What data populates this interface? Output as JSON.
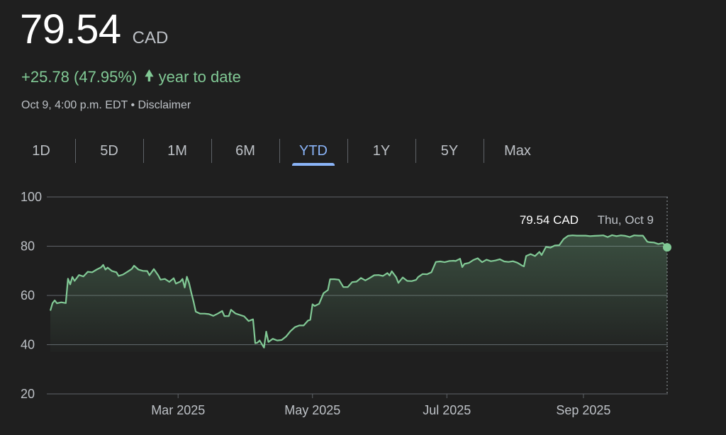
{
  "quote": {
    "price": "79.54",
    "currency": "CAD",
    "change_text": "+25.78 (47.95%)",
    "direction_icon": "arrow-up-icon",
    "period_text": "year to date",
    "timestamp": "Oct 9, 4:00 p.m. EDT",
    "separator": "•",
    "disclaimer": "Disclaimer"
  },
  "tabs": [
    {
      "label": "1D",
      "active": false
    },
    {
      "label": "5D",
      "active": false
    },
    {
      "label": "1M",
      "active": false
    },
    {
      "label": "6M",
      "active": false
    },
    {
      "label": "YTD",
      "active": true
    },
    {
      "label": "1Y",
      "active": false
    },
    {
      "label": "5Y",
      "active": false
    },
    {
      "label": "Max",
      "active": false
    }
  ],
  "colors": {
    "background": "#1f1f1f",
    "line": "#81c995",
    "positive": "#81c995",
    "active_tab": "#8ab4f8",
    "grid": "#5f6368"
  },
  "chart_data": {
    "type": "area",
    "x_unit": "day of year 2025",
    "y_ticks": [
      20,
      40,
      60,
      80,
      100
    ],
    "ylim": [
      20,
      100
    ],
    "xlim": [
      2,
      282
    ],
    "x_ticks": [
      {
        "label": "Mar 2025",
        "day": 60
      },
      {
        "label": "May 2025",
        "day": 121
      },
      {
        "label": "Jul 2025",
        "day": 182
      },
      {
        "label": "Sep 2025",
        "day": 244
      }
    ],
    "tooltip": {
      "value": "79.54 CAD",
      "date": "Thu, Oct 9"
    },
    "series": [
      {
        "points": [
          [
            2,
            53.8
          ],
          [
            3,
            56.9
          ],
          [
            4,
            58
          ],
          [
            5,
            56.8
          ],
          [
            7,
            57.2
          ],
          [
            9,
            56.9
          ],
          [
            10,
            66.8
          ],
          [
            11,
            64.5
          ],
          [
            12,
            67.5
          ],
          [
            13,
            65.9
          ],
          [
            15,
            68.3
          ],
          [
            17,
            67.7
          ],
          [
            19,
            69.6
          ],
          [
            21,
            69.4
          ],
          [
            23,
            70.5
          ],
          [
            25,
            71.4
          ],
          [
            26,
            72.4
          ],
          [
            27,
            70.5
          ],
          [
            28,
            71.3
          ],
          [
            30,
            69.9
          ],
          [
            32,
            69.4
          ],
          [
            33,
            67.9
          ],
          [
            35,
            68.5
          ],
          [
            37,
            69.6
          ],
          [
            39,
            70.8
          ],
          [
            40,
            72.1
          ],
          [
            42,
            70.5
          ],
          [
            44,
            70
          ],
          [
            46,
            69.9
          ],
          [
            47,
            68.2
          ],
          [
            49,
            70.7
          ],
          [
            51,
            68.1
          ],
          [
            52,
            66.4
          ],
          [
            54,
            66.7
          ],
          [
            56,
            65.5
          ],
          [
            58,
            67
          ],
          [
            59,
            64.8
          ],
          [
            61,
            65.6
          ],
          [
            62,
            66.7
          ],
          [
            63,
            63.2
          ],
          [
            64,
            67.6
          ],
          [
            65,
            64.9
          ],
          [
            66,
            61
          ],
          [
            67,
            57.5
          ],
          [
            68,
            53.4
          ],
          [
            70,
            52.6
          ],
          [
            72,
            52.6
          ],
          [
            74,
            52.4
          ],
          [
            76,
            51.7
          ],
          [
            78,
            52.6
          ],
          [
            80,
            53.7
          ],
          [
            81,
            51.6
          ],
          [
            83,
            51.6
          ],
          [
            84,
            54.2
          ],
          [
            86,
            52.7
          ],
          [
            88,
            52.1
          ],
          [
            90,
            51.5
          ],
          [
            92,
            49.6
          ],
          [
            94,
            50.3
          ],
          [
            95,
            40.6
          ],
          [
            96,
            40.8
          ],
          [
            97,
            41.7
          ],
          [
            99,
            38.8
          ],
          [
            100,
            45.3
          ],
          [
            101,
            41.1
          ],
          [
            103,
            42.4
          ],
          [
            105,
            41.7
          ],
          [
            107,
            41.9
          ],
          [
            109,
            43.3
          ],
          [
            111,
            45.5
          ],
          [
            113,
            47.1
          ],
          [
            115,
            47.8
          ],
          [
            117,
            47.8
          ],
          [
            119,
            49.8
          ],
          [
            120,
            50.1
          ],
          [
            121,
            56.4
          ],
          [
            122,
            55.7
          ],
          [
            124,
            56.6
          ],
          [
            126,
            60.9
          ],
          [
            128,
            62.2
          ],
          [
            129,
            66.6
          ],
          [
            131,
            66.6
          ],
          [
            133,
            66.4
          ],
          [
            135,
            63.4
          ],
          [
            137,
            63.4
          ],
          [
            139,
            65.4
          ],
          [
            141,
            65.6
          ],
          [
            143,
            67.1
          ],
          [
            145,
            66.1
          ],
          [
            147,
            67.1
          ],
          [
            149,
            68.2
          ],
          [
            151,
            68.3
          ],
          [
            153,
            67.9
          ],
          [
            155,
            69.1
          ],
          [
            156,
            68.1
          ],
          [
            157,
            69.8
          ],
          [
            159,
            67.4
          ],
          [
            160,
            65.1
          ],
          [
            162,
            67.3
          ],
          [
            164,
            65.9
          ],
          [
            166,
            65.8
          ],
          [
            168,
            66.3
          ],
          [
            169,
            67.5
          ],
          [
            171,
            68.7
          ],
          [
            173,
            68.6
          ],
          [
            175,
            69.4
          ],
          [
            177,
            73.6
          ],
          [
            179,
            73.8
          ],
          [
            181,
            73.5
          ],
          [
            183,
            74
          ],
          [
            185,
            74.1
          ],
          [
            186,
            74
          ],
          [
            188,
            74.9
          ],
          [
            189,
            71.5
          ],
          [
            190,
            72.8
          ],
          [
            192,
            73.2
          ],
          [
            194,
            74.4
          ],
          [
            196,
            75.1
          ],
          [
            198,
            73.5
          ],
          [
            200,
            74.5
          ],
          [
            202,
            73.9
          ],
          [
            204,
            74.2
          ],
          [
            206,
            74.7
          ],
          [
            208,
            73.8
          ],
          [
            210,
            73.6
          ],
          [
            212,
            73.9
          ],
          [
            214,
            73.3
          ],
          [
            216,
            72.2
          ],
          [
            217,
            71.8
          ],
          [
            218,
            76
          ],
          [
            220,
            76.8
          ],
          [
            222,
            76
          ],
          [
            224,
            77.7
          ],
          [
            225,
            76.4
          ],
          [
            227,
            79.7
          ],
          [
            229,
            79.4
          ],
          [
            231,
            80.3
          ],
          [
            233,
            80.4
          ],
          [
            235,
            82.9
          ],
          [
            237,
            84.2
          ],
          [
            239,
            84.4
          ],
          [
            241,
            84.3
          ],
          [
            243,
            84.3
          ],
          [
            245,
            84.3
          ],
          [
            247,
            84.1
          ],
          [
            249,
            84.2
          ],
          [
            251,
            84.3
          ],
          [
            253,
            84.4
          ],
          [
            255,
            83.7
          ],
          [
            257,
            84.5
          ],
          [
            259,
            84.1
          ],
          [
            261,
            84.4
          ],
          [
            263,
            84.2
          ],
          [
            265,
            83.7
          ],
          [
            267,
            84.4
          ],
          [
            269,
            84.3
          ],
          [
            271,
            84.3
          ],
          [
            273,
            81.8
          ],
          [
            274,
            81.6
          ],
          [
            276,
            81.5
          ],
          [
            278,
            80.9
          ],
          [
            280,
            81.3
          ],
          [
            282,
            79.54
          ]
        ]
      }
    ]
  }
}
